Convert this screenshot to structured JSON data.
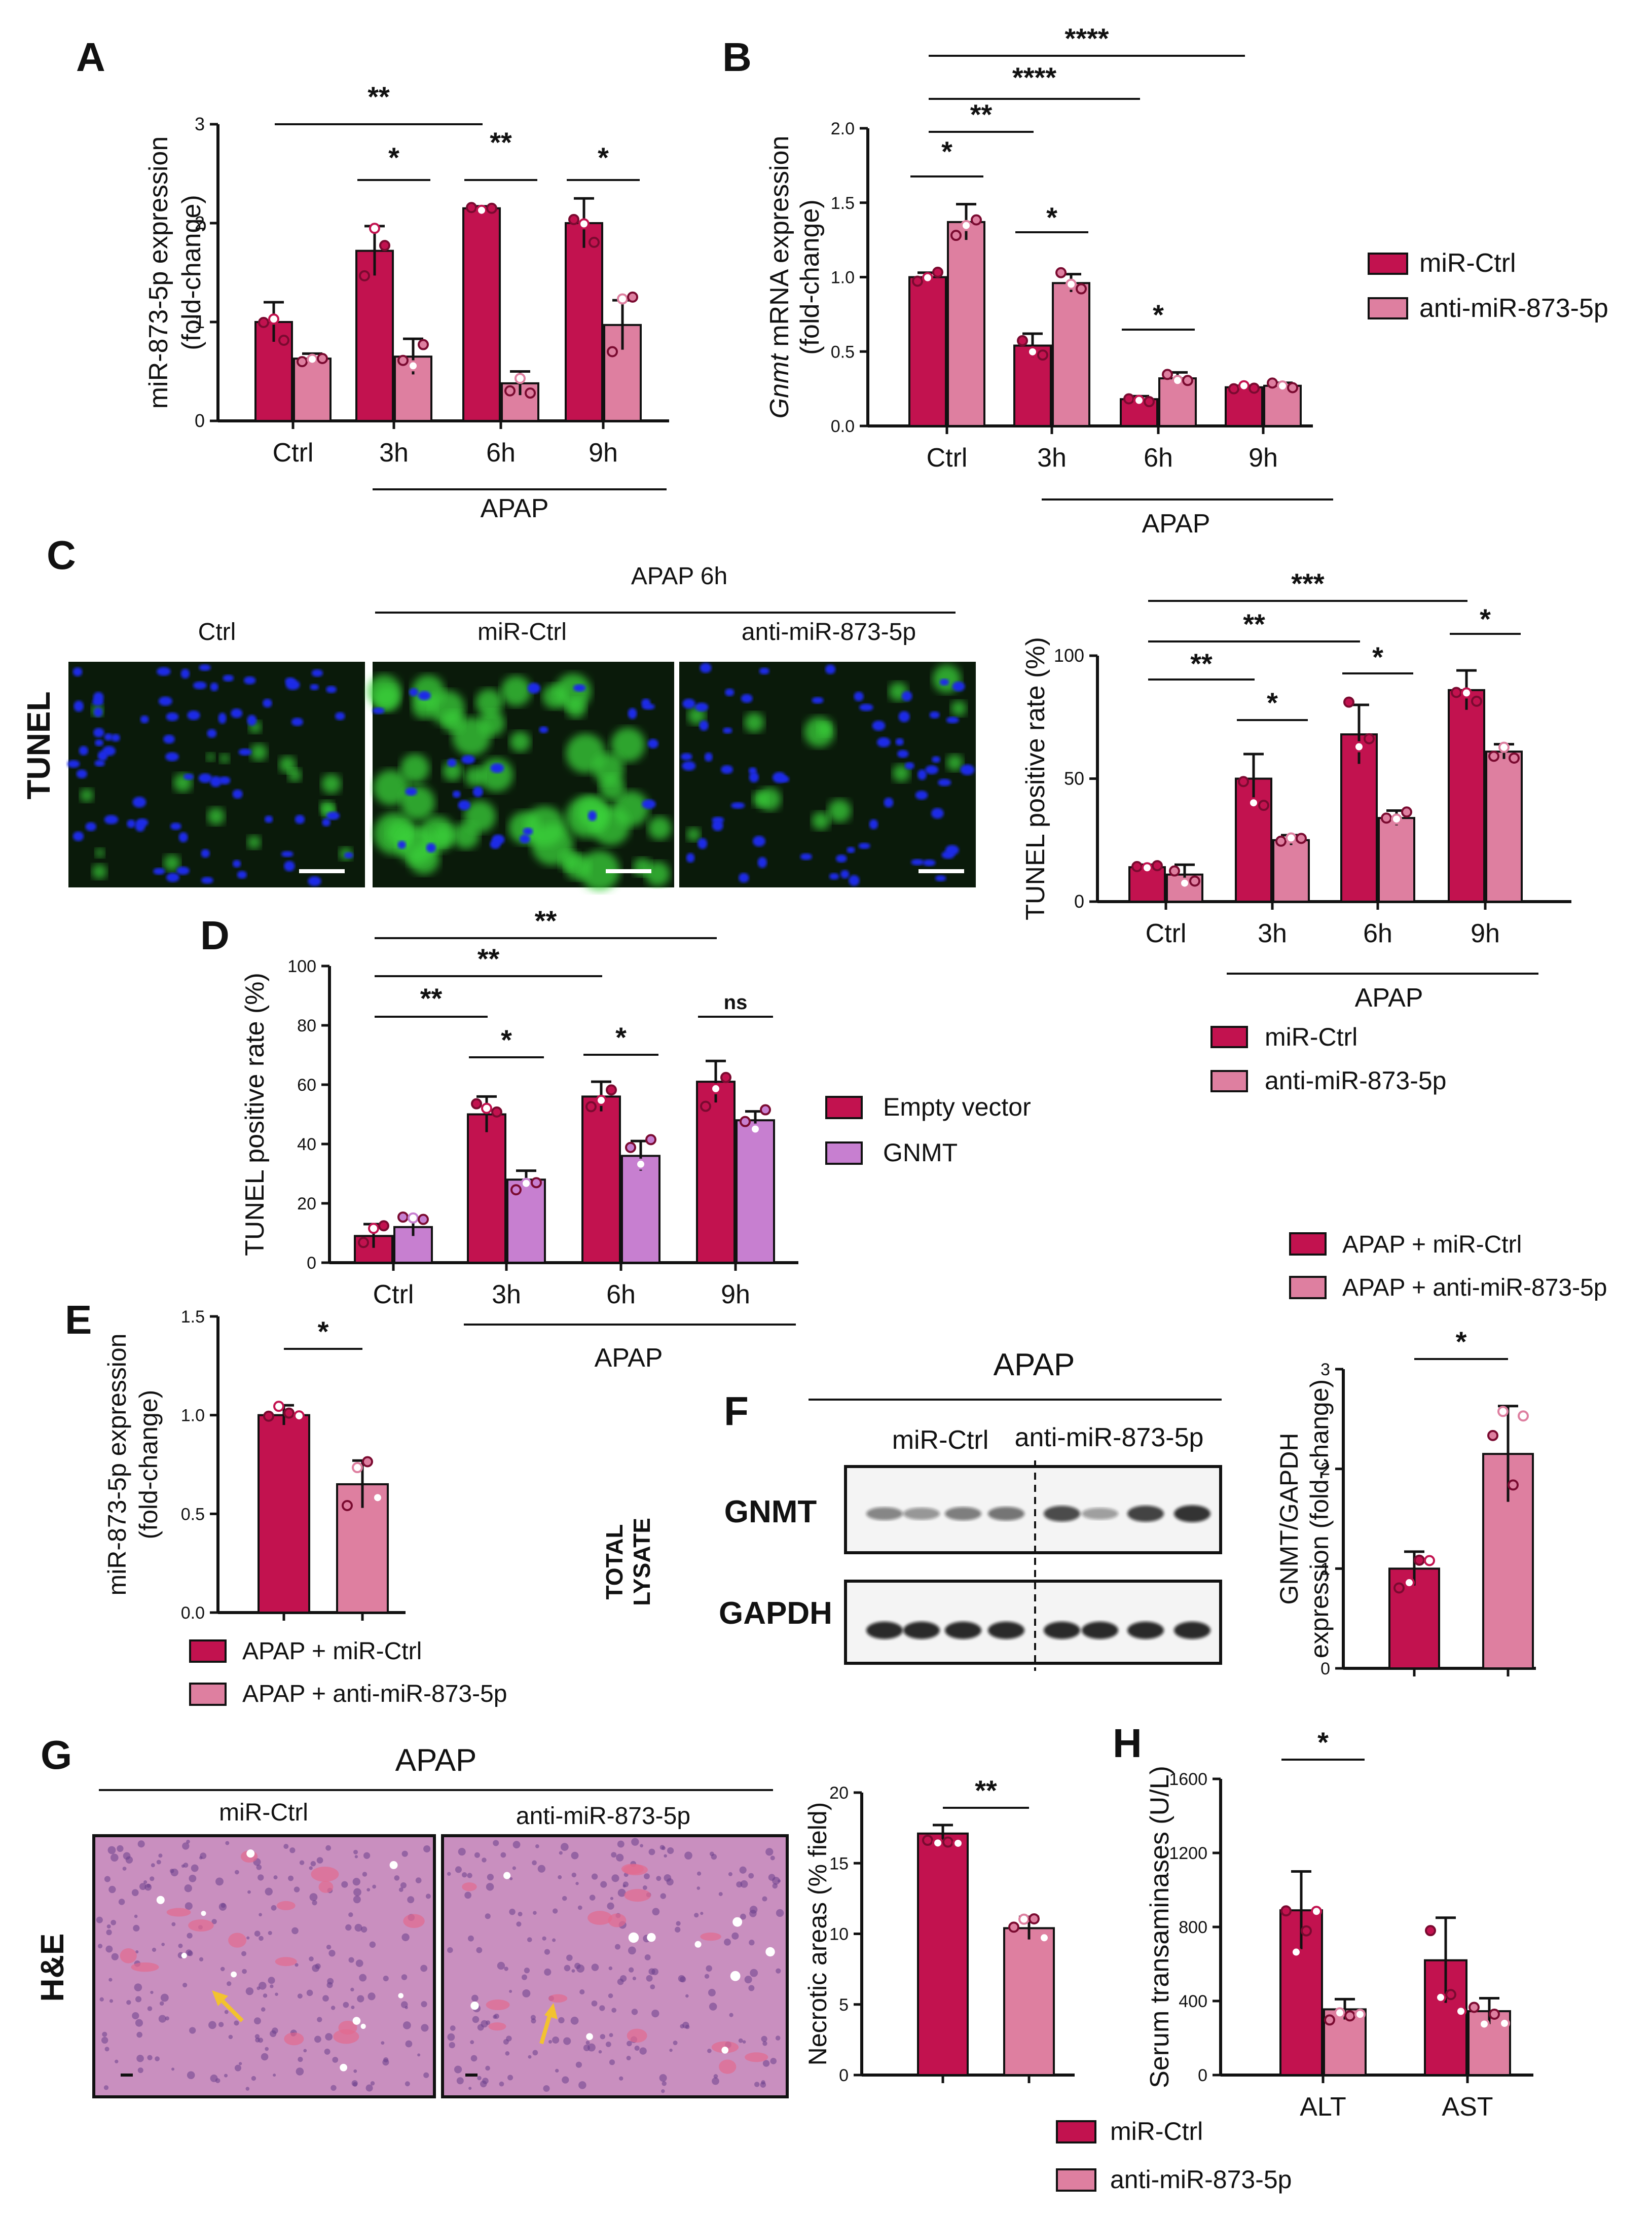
{
  "colors": {
    "dark": "#c2124f",
    "light": "#de7fa0",
    "purple": "#c77fd0",
    "cell_bg": "#0a1a0a",
    "he_bg": "#c98fbf"
  },
  "panel_letters": [
    "A",
    "B",
    "C",
    "D",
    "E",
    "F",
    "G",
    "H"
  ],
  "chart_data": [
    {
      "id": "A",
      "type": "bar",
      "categories": [
        "Ctrl",
        "3h",
        "6h",
        "9h"
      ],
      "ylabel": "miR-873-5p expression\n(fold-change)",
      "ylim": [
        0,
        3
      ],
      "yticks": [
        "0",
        "1",
        "2",
        "3"
      ],
      "group_label": "APAP",
      "series": [
        {
          "color_key": "dark",
          "values": [
            1.0,
            1.72,
            2.15,
            2.0
          ],
          "errors": [
            0.2,
            0.25,
            0.02,
            0.25
          ]
        },
        {
          "color_key": "light",
          "values": [
            0.63,
            0.65,
            0.38,
            0.97
          ],
          "errors": [
            0.05,
            0.18,
            0.12,
            0.25
          ]
        }
      ],
      "significance": [
        "**",
        "*",
        "**",
        "*"
      ]
    },
    {
      "id": "B",
      "type": "bar",
      "categories": [
        "Ctrl",
        "3h",
        "6h",
        "9h"
      ],
      "ylabel_italic": "Gnmt",
      "ylabel_rest": " mRNA expression",
      "ylabel2": "(fold-change)",
      "ylim": [
        0,
        2
      ],
      "yticks": [
        "0.0",
        "0.5",
        "1.0",
        "1.5",
        "2.0"
      ],
      "group_label": "APAP",
      "legend": [
        "miR-Ctrl",
        "anti-miR-873-5p"
      ],
      "series": [
        {
          "name": "miR-Ctrl",
          "color_key": "dark",
          "values": [
            1.0,
            0.54,
            0.18,
            0.26
          ],
          "errors": [
            0.03,
            0.08,
            0.02,
            0.01
          ]
        },
        {
          "name": "anti-miR-873-5p",
          "color_key": "light",
          "values": [
            1.37,
            0.96,
            0.32,
            0.27
          ],
          "errors": [
            0.12,
            0.06,
            0.04,
            0.02
          ]
        }
      ],
      "significance": [
        "****",
        "****",
        "**",
        "*",
        "*",
        "*"
      ]
    },
    {
      "id": "C",
      "type": "bar",
      "categories": [
        "Ctrl",
        "3h",
        "6h",
        "9h"
      ],
      "ylabel": "TUNEL positive rate (%)",
      "ylim": [
        0,
        100
      ],
      "yticks": [
        "0",
        "50",
        "100"
      ],
      "group_label": "APAP",
      "legend": [
        "miR-Ctrl",
        "anti-miR-873-5p"
      ],
      "series": [
        {
          "name": "miR-Ctrl",
          "color_key": "dark",
          "values": [
            14,
            50,
            68,
            86
          ],
          "errors": [
            1,
            10,
            12,
            8
          ]
        },
        {
          "name": "anti-miR-873-5p",
          "color_key": "light",
          "values": [
            11,
            25,
            34,
            61
          ],
          "errors": [
            4,
            2,
            3,
            3
          ]
        }
      ],
      "significance": [
        "***",
        "**",
        "**",
        "*",
        "*",
        "*",
        "*"
      ]
    },
    {
      "id": "D",
      "type": "bar",
      "categories": [
        "Ctrl",
        "3h",
        "6h",
        "9h"
      ],
      "ylabel": "TUNEL positive rate (%)",
      "ylim": [
        0,
        100
      ],
      "yticks": [
        "0",
        "20",
        "40",
        "60",
        "80",
        "100"
      ],
      "group_label": "APAP",
      "legend": [
        "Empty vector",
        "GNMT"
      ],
      "series": [
        {
          "name": "Empty vector",
          "color_key": "dark",
          "values": [
            9,
            50,
            56,
            61
          ],
          "errors": [
            4,
            6,
            5,
            7
          ]
        },
        {
          "name": "GNMT",
          "color_key": "purple",
          "values": [
            12,
            28,
            36,
            48
          ],
          "errors": [
            3,
            3,
            5,
            3
          ]
        }
      ],
      "significance": [
        "**",
        "**",
        "**",
        "*",
        "*",
        "ns"
      ]
    },
    {
      "id": "E",
      "type": "bar",
      "categories": [
        "APAP + miR-Ctrl",
        "APAP + anti-miR-873-5p"
      ],
      "ylabel": "miR-873-5p expression\n(fold-change)",
      "ylim": [
        0,
        1.5
      ],
      "yticks": [
        "0.0",
        "0.5",
        "1.0",
        "1.5"
      ],
      "legend": [
        "APAP + miR-Ctrl",
        "APAP + anti-miR-873-5p"
      ],
      "values": [
        1.0,
        0.65
      ],
      "errors": [
        0.05,
        0.12
      ],
      "significance": [
        "*"
      ]
    },
    {
      "id": "F",
      "type": "bar",
      "categories": [
        "APAP + miR-Ctrl",
        "APAP + anti-miR-873-5p"
      ],
      "ylabel": "GNMT/GAPDH\nexpression (fold-change)",
      "ylim": [
        0,
        3
      ],
      "yticks": [
        "0",
        "1",
        "2",
        "3"
      ],
      "legend": [
        "APAP + miR-Ctrl",
        "APAP + anti-miR-873-5p"
      ],
      "values": [
        1.0,
        2.15
      ],
      "errors": [
        0.17,
        0.48
      ],
      "significance": [
        "*"
      ]
    },
    {
      "id": "G",
      "type": "bar",
      "categories": [
        "miR-Ctrl",
        "anti-miR-873-5p"
      ],
      "ylabel": "Necrotic areas (% field)",
      "ylim": [
        0,
        20
      ],
      "yticks": [
        "0",
        "5",
        "10",
        "15",
        "20"
      ],
      "legend": [
        "miR-Ctrl",
        "anti-miR-873-5p"
      ],
      "values": [
        17.1,
        10.4
      ],
      "errors": [
        0.6,
        0.8
      ],
      "significance": [
        "**"
      ]
    },
    {
      "id": "H",
      "type": "bar",
      "categories": [
        "ALT",
        "AST"
      ],
      "ylabel": "Serum transaminases (U/L)",
      "ylim": [
        0,
        1600
      ],
      "yticks": [
        "0",
        "400",
        "800",
        "1200",
        "1600"
      ],
      "legend": [
        "miR-Ctrl",
        "anti-miR-873-5p"
      ],
      "series": [
        {
          "name": "miR-Ctrl",
          "color_key": "dark",
          "values": [
            890,
            620
          ],
          "errors": [
            210,
            230
          ]
        },
        {
          "name": "anti-miR-873-5p",
          "color_key": "light",
          "values": [
            355,
            345
          ],
          "errors": [
            55,
            70
          ]
        }
      ],
      "significance": [
        "*"
      ]
    }
  ],
  "panel_c": {
    "header": "APAP 6h",
    "image_labels": [
      "Ctrl",
      "miR-Ctrl",
      "anti-miR-873-5p"
    ],
    "row_label": "TUNEL"
  },
  "panel_f_blot": {
    "header": "APAP",
    "group_labels": [
      "miR-Ctrl",
      "anti-miR-873-5p"
    ],
    "bands": [
      "GNMT",
      "GAPDH"
    ],
    "side_label": [
      "TOTAL",
      "LYSATE"
    ]
  },
  "panel_g": {
    "header": "APAP",
    "image_labels": [
      "miR-Ctrl",
      "anti-miR-873-5p"
    ],
    "row_label": "H&E"
  }
}
